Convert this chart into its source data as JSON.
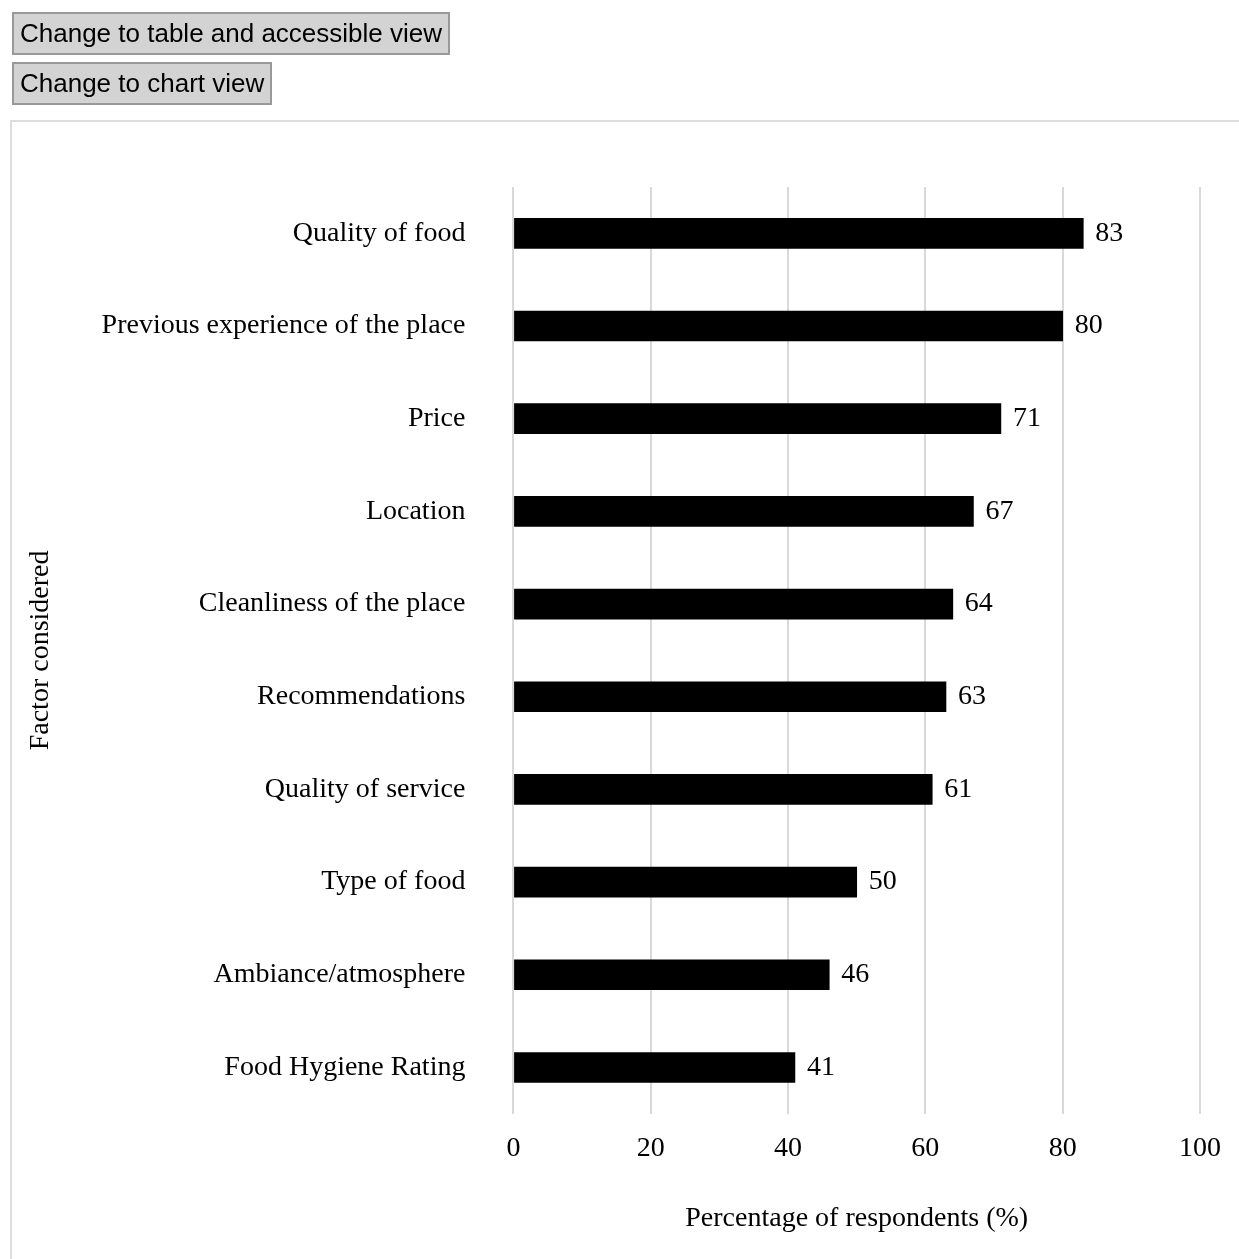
{
  "chart_data": {
    "type": "bar",
    "orientation": "horizontal",
    "categories": [
      "Quality of food",
      "Previous experience of the place",
      "Price",
      "Location",
      "Cleanliness of the place",
      "Recommendations",
      "Quality of service",
      "Type of food",
      "Ambiance/atmosphere",
      "Food Hygiene Rating"
    ],
    "values": [
      83,
      80,
      71,
      67,
      64,
      63,
      61,
      50,
      46,
      41
    ],
    "color": "#000000",
    "xlim": [
      0,
      100
    ],
    "xticks": [
      0,
      20,
      40,
      60,
      80,
      100
    ],
    "grid": "x",
    "data_labels": true,
    "xlabel": "Percentage of respondents (%)",
    "ylabel": "Factor considered",
    "annotations": [
      "Change to table and accessible view",
      "Change to chart view"
    ]
  }
}
